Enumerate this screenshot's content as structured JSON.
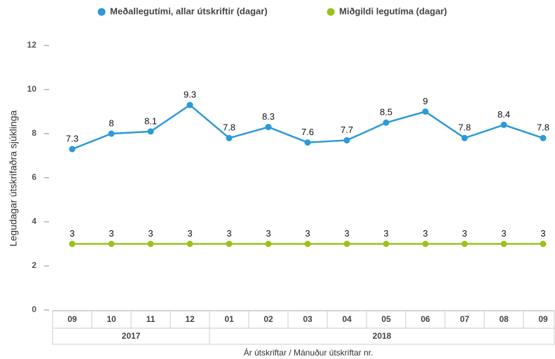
{
  "chart_data": {
    "type": "line",
    "categories": [
      "09",
      "10",
      "11",
      "12",
      "01",
      "02",
      "03",
      "04",
      "05",
      "06",
      "07",
      "08",
      "09"
    ],
    "category_years": [
      "2017",
      "2017",
      "2017",
      "2017",
      "2018",
      "2018",
      "2018",
      "2018",
      "2018",
      "2018",
      "2018",
      "2018",
      "2018"
    ],
    "series": [
      {
        "name": "Meðallegutími, allar útskriftir (dagar)",
        "color": "#2b9ad8",
        "values": [
          7.3,
          8,
          8.1,
          9.3,
          7.8,
          8.3,
          7.6,
          7.7,
          8.5,
          9,
          7.8,
          8.4,
          7.8
        ]
      },
      {
        "name": "Miðgildi legutíma (dagar)",
        "color": "#99c31c",
        "values": [
          3,
          3,
          3,
          3,
          3,
          3,
          3,
          3,
          3,
          3,
          3,
          3,
          3
        ]
      }
    ],
    "y_label": "Legudagar útskrifaðra sjúklinga",
    "x_label": "Ár útskriftar / Mánuður útskriftar nr.",
    "ylim": [
      0,
      12
    ],
    "yticks": [
      0,
      2,
      4,
      6,
      8,
      10,
      12
    ],
    "grid": false,
    "legend": "top"
  }
}
